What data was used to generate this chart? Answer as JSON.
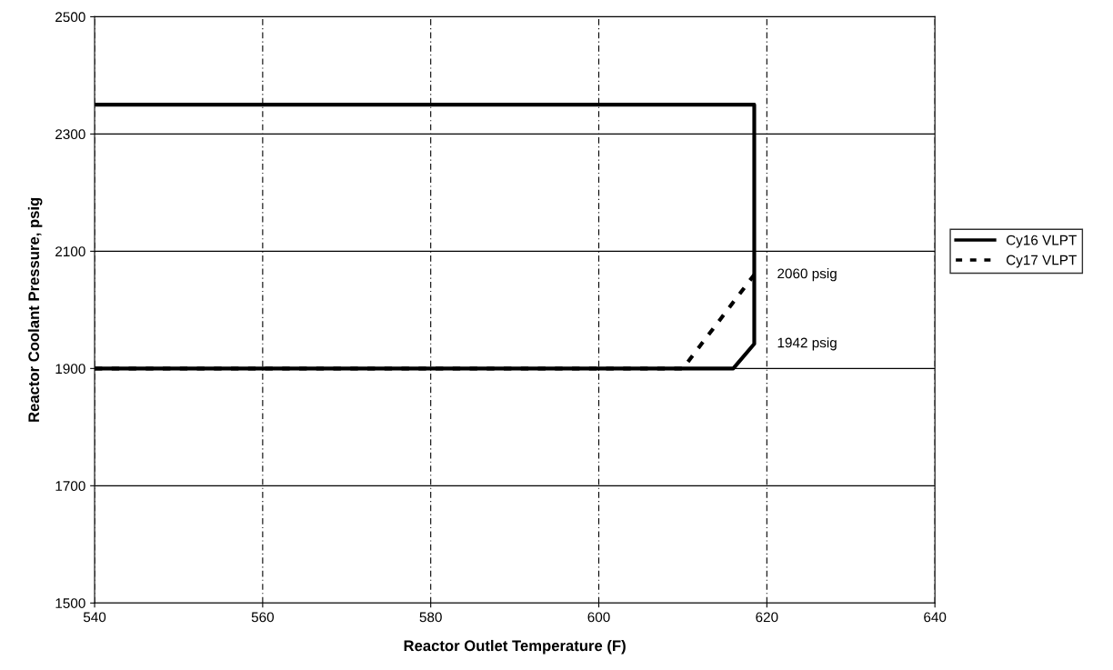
{
  "chart_data": {
    "type": "line",
    "xlabel": "Reactor Outlet Temperature (F)",
    "ylabel": "Reactor Coolant Pressure, psig",
    "xlim": [
      540,
      640
    ],
    "xticks": [
      540,
      560,
      580,
      600,
      620,
      640
    ],
    "ylim": [
      1500,
      2500
    ],
    "yticks": [
      1500,
      1700,
      1900,
      2100,
      2300,
      2500
    ],
    "grid": true,
    "legend": "right",
    "marker": "none",
    "series": [
      {
        "name": "Cy16 VLPT",
        "color": "#000000",
        "line_style": "solid",
        "x": [
          540,
          616,
          618.5,
          618.5,
          540
        ],
        "values": [
          1900,
          1900,
          1942,
          2350,
          2350
        ]
      },
      {
        "name": "Cy17 VLPT",
        "color": "#000000",
        "line_style": "dotted",
        "x": [
          540,
          610,
          618.5
        ],
        "values": [
          1900,
          1900,
          2060
        ]
      }
    ],
    "annotations": [
      {
        "text": "2060 psig",
        "x": 618.5,
        "y": 2060
      },
      {
        "text": "1942 psig",
        "x": 618.5,
        "y": 1942
      }
    ]
  }
}
